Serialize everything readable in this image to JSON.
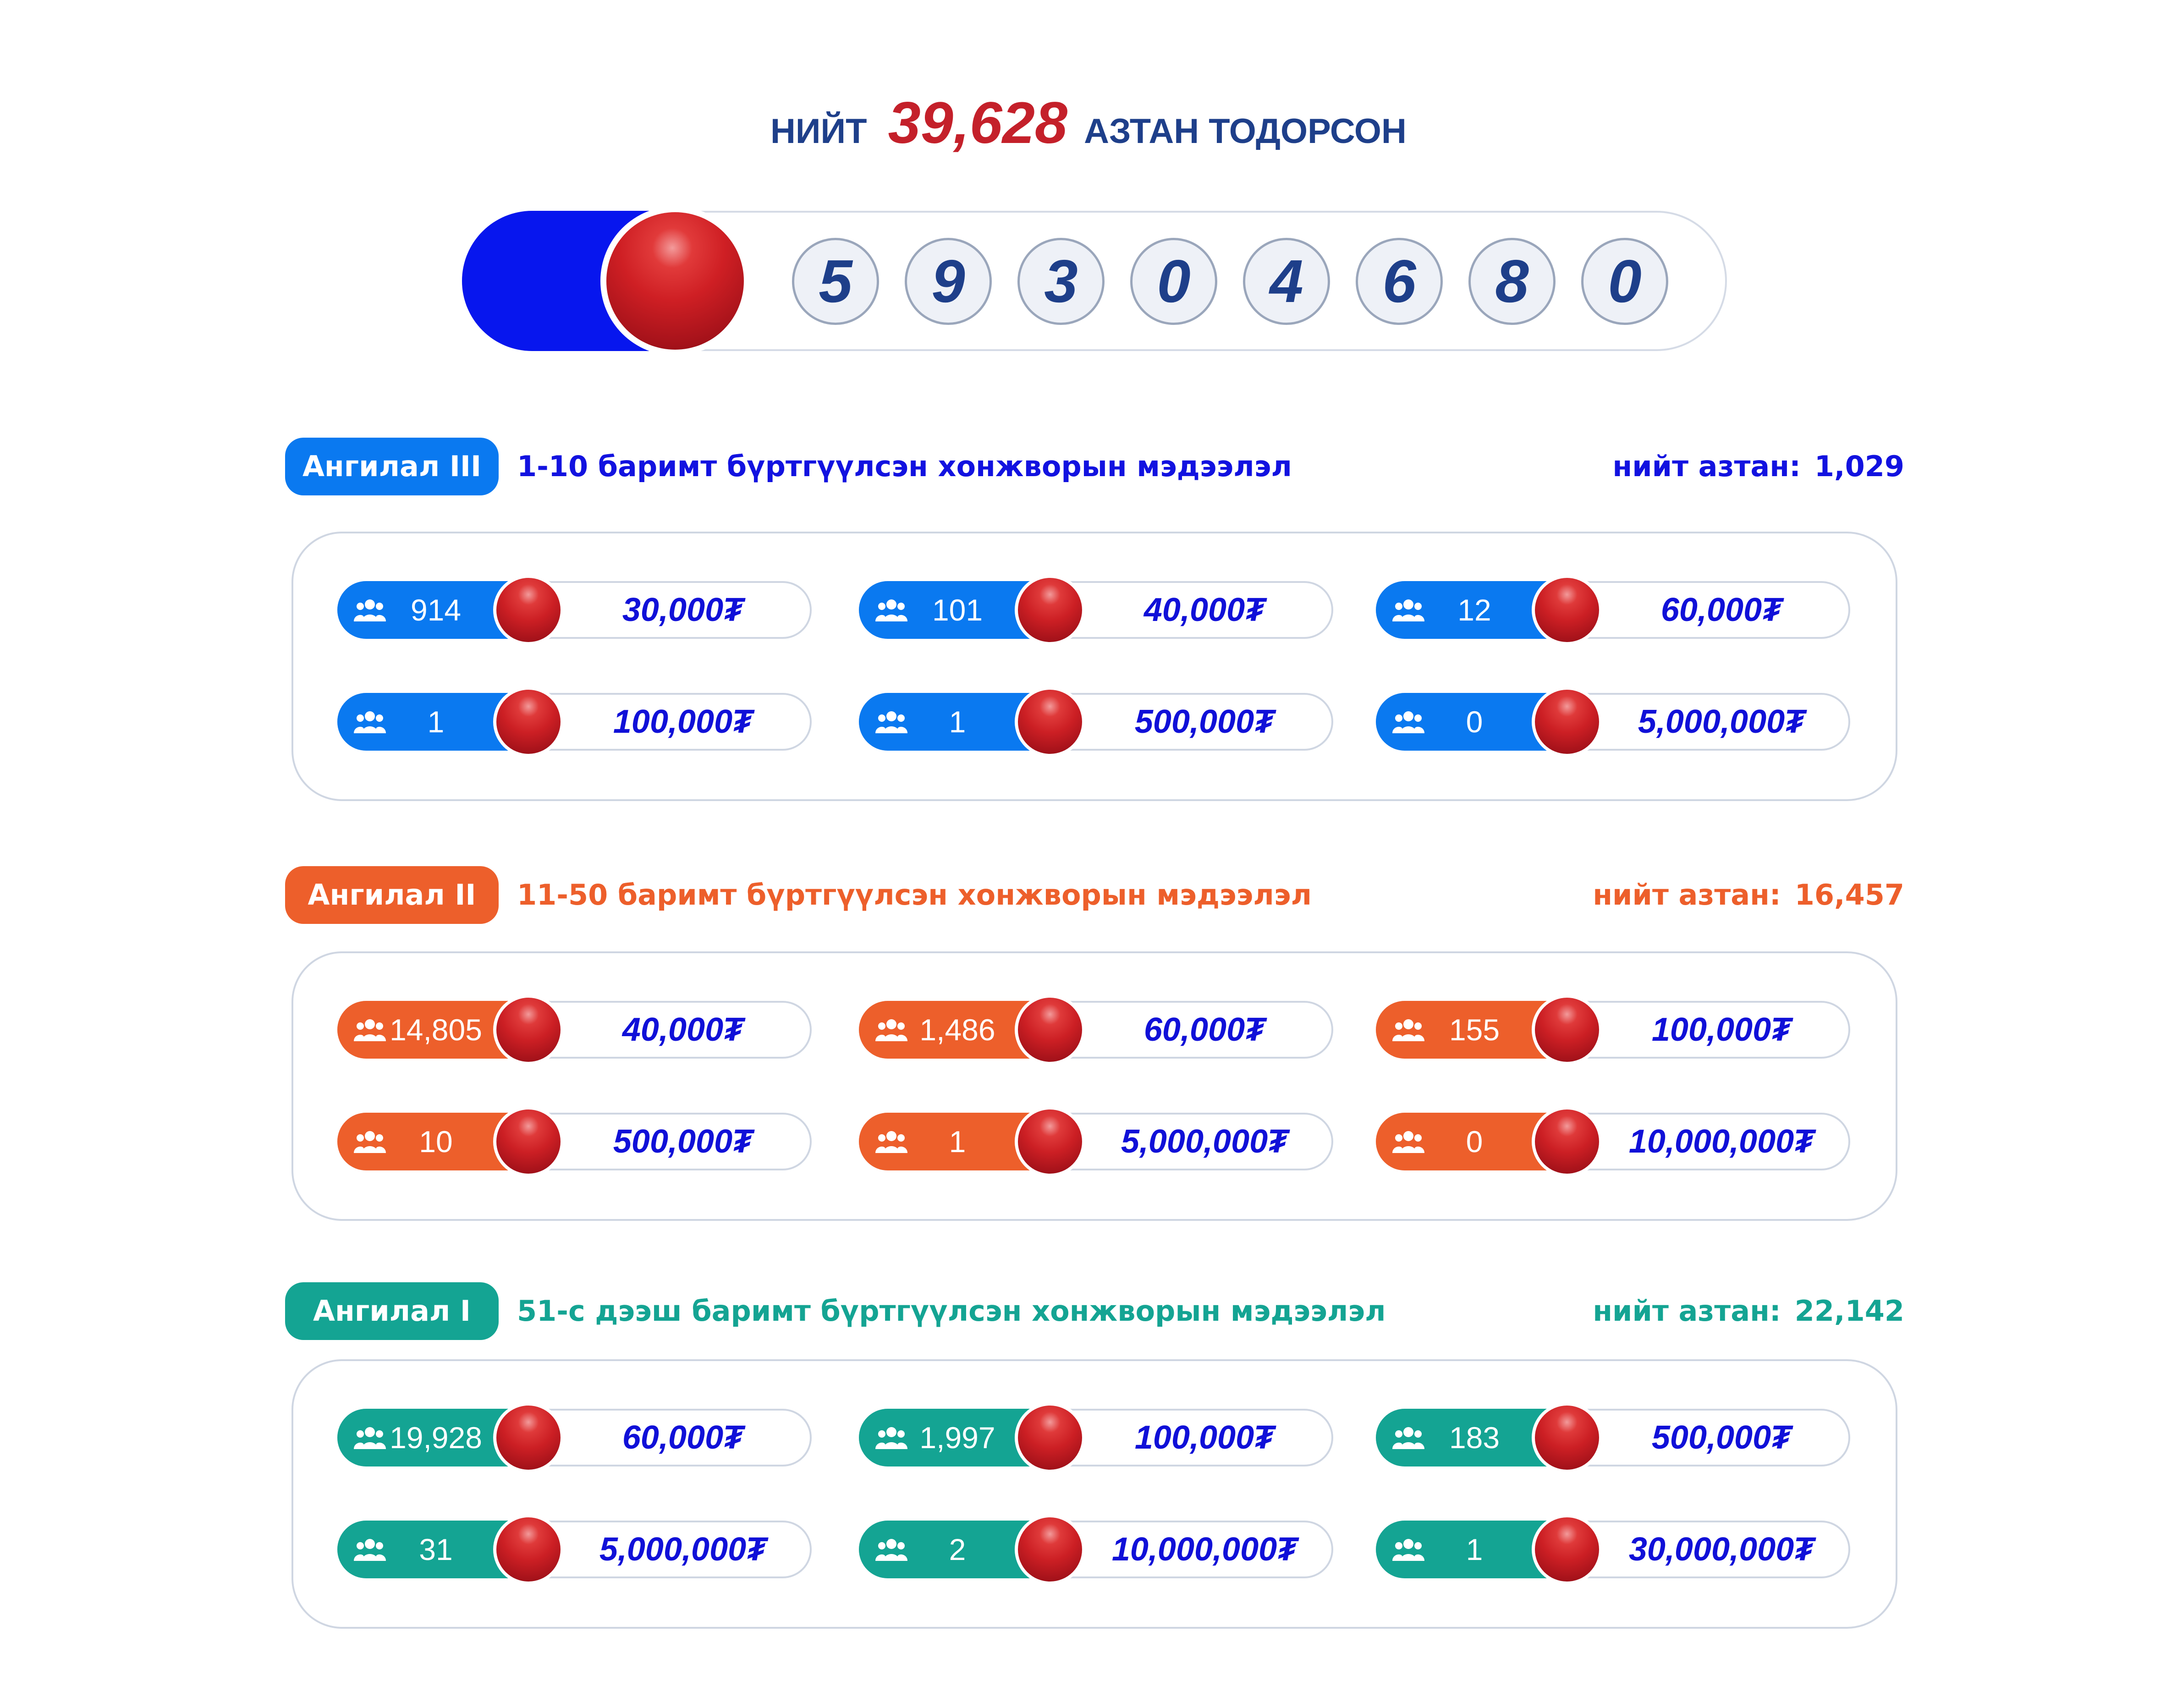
{
  "header": {
    "prefix": "НИЙТ",
    "total": "39,628",
    "suffix": "АЗТАН ТОДОРСОН"
  },
  "winning_numbers": [
    "5",
    "9",
    "3",
    "0",
    "4",
    "6",
    "8",
    "0"
  ],
  "categories": [
    {
      "badge": "Ангилал III",
      "title": "1-10 баримт бүртгүүлсэн хонжворын мэдээлэл",
      "total_label": "нийт азтан:",
      "total_value": "1,029",
      "color": "#0a79f0",
      "text_color": "#1212e0",
      "prizes": [
        {
          "count": "914",
          "amount": "30,000₮"
        },
        {
          "count": "101",
          "amount": "40,000₮"
        },
        {
          "count": "12",
          "amount": "60,000₮"
        },
        {
          "count": "1",
          "amount": "100,000₮"
        },
        {
          "count": "1",
          "amount": "500,000₮"
        },
        {
          "count": "0",
          "amount": "5,000,000₮"
        }
      ]
    },
    {
      "badge": "Ангилал II",
      "title": "11-50 баримт бүртгүүлсэн хонжворын мэдээлэл",
      "total_label": "нийт азтан:",
      "total_value": "16,457",
      "color": "#ed5f2b",
      "text_color": "#ed5f2b",
      "prizes": [
        {
          "count": "14,805",
          "amount": "40,000₮"
        },
        {
          "count": "1,486",
          "amount": "60,000₮"
        },
        {
          "count": "155",
          "amount": "100,000₮"
        },
        {
          "count": "10",
          "amount": "500,000₮"
        },
        {
          "count": "1",
          "amount": "5,000,000₮"
        },
        {
          "count": "0",
          "amount": "10,000,000₮"
        }
      ]
    },
    {
      "badge": "Ангилал I",
      "title": "51-с дээш баримт бүртгүүлсэн хонжворын мэдээлэл",
      "total_label": "нийт азтан:",
      "total_value": "22,142",
      "color": "#14a493",
      "text_color": "#14a493",
      "prizes": [
        {
          "count": "19,928",
          "amount": "60,000₮"
        },
        {
          "count": "1,997",
          "amount": "100,000₮"
        },
        {
          "count": "183",
          "amount": "500,000₮"
        },
        {
          "count": "31",
          "amount": "5,000,000₮"
        },
        {
          "count": "2",
          "amount": "10,000,000₮"
        },
        {
          "count": "1",
          "amount": "30,000,000₮"
        }
      ]
    }
  ]
}
